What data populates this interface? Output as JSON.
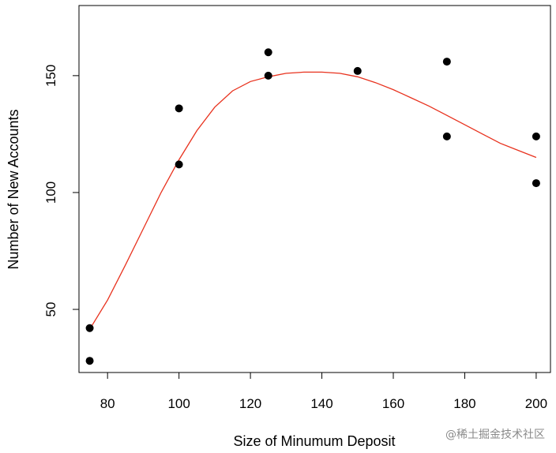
{
  "chart_data": {
    "type": "scatter",
    "title": "",
    "xlabel": "Size of Minumum Deposit",
    "ylabel": "Number of New Accounts",
    "xlim": [
      72,
      204
    ],
    "ylim": [
      23,
      180
    ],
    "x_ticks": [
      80,
      100,
      120,
      140,
      160,
      180,
      200
    ],
    "y_ticks": [
      50,
      100,
      150
    ],
    "grid": false,
    "legend": "none",
    "points": [
      {
        "x": 75,
        "y": 28
      },
      {
        "x": 75,
        "y": 42
      },
      {
        "x": 100,
        "y": 112
      },
      {
        "x": 100,
        "y": 136
      },
      {
        "x": 125,
        "y": 150
      },
      {
        "x": 125,
        "y": 160
      },
      {
        "x": 150,
        "y": 152
      },
      {
        "x": 175,
        "y": 124
      },
      {
        "x": 175,
        "y": 156
      },
      {
        "x": 200,
        "y": 104
      },
      {
        "x": 200,
        "y": 124
      }
    ],
    "fit_line": {
      "color": "#e8321e",
      "x": [
        75,
        80,
        85,
        90,
        95,
        100,
        105,
        110,
        115,
        120,
        125,
        130,
        135,
        140,
        145,
        150,
        155,
        160,
        165,
        170,
        175,
        180,
        185,
        190,
        195,
        200
      ],
      "y": [
        41.5,
        54,
        69,
        84.5,
        100,
        114,
        126.5,
        136.5,
        143.5,
        147.5,
        149.5,
        151,
        151.5,
        151.5,
        151,
        149.5,
        147,
        144,
        140.5,
        137,
        133,
        129,
        125,
        121,
        118,
        115
      ]
    },
    "point_color": "#000000"
  },
  "watermark": {
    "text": "@稀土掘金技术社区"
  }
}
